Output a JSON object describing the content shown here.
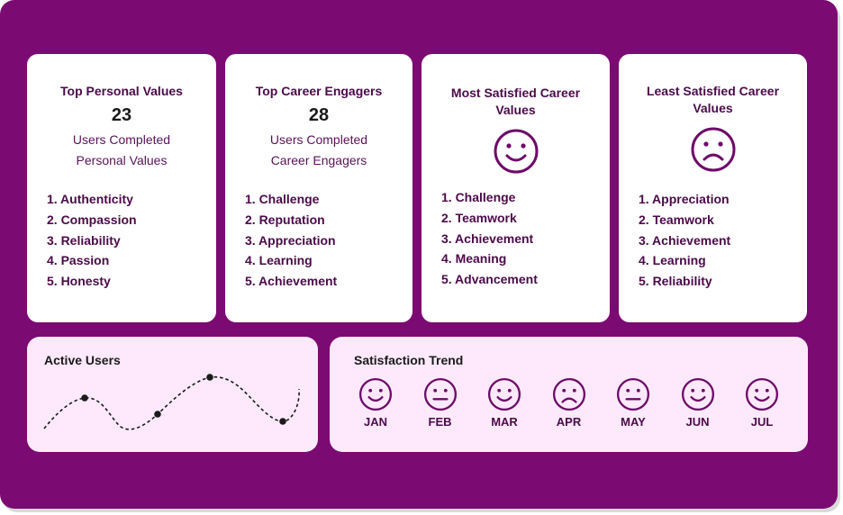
{
  "cards": [
    {
      "title": "Top Personal Values",
      "count": "23",
      "sub1": "Users Completed",
      "sub2": "Personal Values",
      "items": [
        "1. Authenticity",
        "2. Compassion",
        "3. Reliability",
        "4. Passion",
        "5. Honesty"
      ]
    },
    {
      "title": "Top Career Engagers",
      "count": "28",
      "sub1": "Users Completed",
      "sub2": "Career Engagers",
      "items": [
        "1. Challenge",
        "2. Reputation",
        "3. Appreciation",
        "4. Learning",
        "5. Achievement"
      ]
    },
    {
      "title1": "Most Satisfied Career",
      "title2": "Values",
      "face": "smile-face-icon",
      "items": [
        "1. Challenge",
        "2. Teamwork",
        "3. Achievement",
        "4. Meaning",
        "5. Advancement"
      ]
    },
    {
      "title1": "Least Satisfied Career",
      "title2": "Values",
      "face": "sad-face-icon",
      "items": [
        "1. Appreciation",
        "2. Teamwork",
        "3. Achievement",
        "4. Learning",
        "5. Reliability"
      ]
    }
  ],
  "active_users": {
    "title": "Active Users"
  },
  "trend": {
    "title": "Satisfaction Trend",
    "months": [
      {
        "label": "JAN",
        "mood": "happy"
      },
      {
        "label": "FEB",
        "mood": "neutral"
      },
      {
        "label": "MAR",
        "mood": "happy"
      },
      {
        "label": "APR",
        "mood": "sad"
      },
      {
        "label": "MAY",
        "mood": "neutral"
      },
      {
        "label": "JUN",
        "mood": "happy"
      },
      {
        "label": "JUL",
        "mood": "happy"
      }
    ]
  },
  "colors": {
    "frame": "#7b0a72",
    "accent": "#6e0a69",
    "panel": "#fde9fb"
  }
}
